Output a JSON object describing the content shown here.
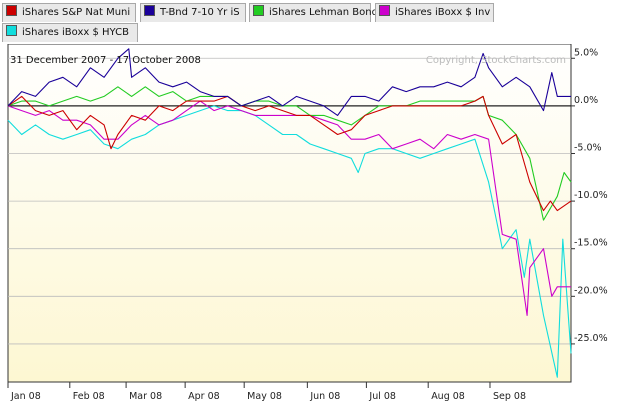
{
  "legend": {
    "items": [
      {
        "label": "iShares S&P Nat Muni",
        "color": "#cc0000"
      },
      {
        "label": "T-Bnd 7-10 Yr iS",
        "color": "#1a0099"
      },
      {
        "label": "iShares Lehman Bond",
        "color": "#22cc22"
      },
      {
        "label": "iShares iBoxx $ Inv",
        "color": "#cc00cc"
      },
      {
        "label": "iShares iBoxx $ HYCB",
        "color": "#11dddd"
      }
    ]
  },
  "chart": {
    "date_range": "31 December 2007 - 17 October 2008",
    "copyright": "Copyright, StockCharts.com",
    "background_top": "#ffffff",
    "background_bottom": "#fdf7d2"
  },
  "chart_data": {
    "type": "line",
    "xlim": [
      0,
      41
    ],
    "ylim": [
      -29,
      6.5
    ],
    "ylabel_side": "right",
    "y_ticks": [
      {
        "value": 5,
        "label": "5.0%"
      },
      {
        "value": 0,
        "label": "0.0%"
      },
      {
        "value": -5,
        "label": "-5.0%"
      },
      {
        "value": -10,
        "label": "-10.0%"
      },
      {
        "value": -15,
        "label": "-15.0%"
      },
      {
        "value": -20,
        "label": "-20.0%"
      },
      {
        "value": -25,
        "label": "-25.0%"
      }
    ],
    "x_ticks": [
      {
        "value": 0,
        "label": "Jan 08"
      },
      {
        "value": 4.5,
        "label": "Feb 08"
      },
      {
        "value": 8.6,
        "label": "Mar 08"
      },
      {
        "value": 12.9,
        "label": "Apr 08"
      },
      {
        "value": 17.2,
        "label": "May 08"
      },
      {
        "value": 21.8,
        "label": "Jun 08"
      },
      {
        "value": 26.1,
        "label": "Jul 08"
      },
      {
        "value": 30.6,
        "label": "Aug 08"
      },
      {
        "value": 35.1,
        "label": "Sep 08"
      }
    ],
    "grid": true,
    "series": [
      {
        "name": "iShares S&P Nat Muni",
        "color": "#cc0000",
        "x": [
          0,
          1,
          2,
          3,
          4,
          5,
          6,
          7,
          7.5,
          8,
          9,
          10,
          11,
          12,
          13,
          14,
          15,
          16,
          17,
          18,
          19,
          20,
          21,
          22,
          23,
          24,
          25,
          26,
          27,
          28,
          29,
          30,
          31,
          32,
          33,
          34,
          34.6,
          35,
          36,
          37,
          38,
          39,
          39.5,
          40,
          41
        ],
        "y": [
          0,
          1,
          -0.5,
          -1,
          -0.5,
          -2.5,
          -1,
          -2,
          -4.5,
          -3,
          -1,
          -1.5,
          0,
          -0.5,
          0.5,
          0.5,
          0.5,
          1,
          0,
          -0.5,
          0,
          -0.5,
          -1,
          -1,
          -2,
          -3,
          -2.5,
          -1,
          -0.5,
          0,
          0,
          0,
          0,
          0,
          0,
          0.5,
          1,
          -1,
          -4,
          -3,
          -8,
          -11,
          -10,
          -11,
          -10
        ]
      },
      {
        "name": "T-Bnd 7-10 Yr iS",
        "color": "#1a0099",
        "x": [
          0,
          1,
          2,
          3,
          4,
          5,
          6,
          7,
          8,
          8.8,
          9,
          10,
          11,
          12,
          13,
          14,
          15,
          16,
          17,
          18,
          19,
          20,
          21,
          22,
          23,
          24,
          25,
          26,
          27,
          28,
          29,
          30,
          31,
          32,
          33,
          34,
          34.6,
          35,
          36,
          37,
          38,
          39,
          39.6,
          40,
          41
        ],
        "y": [
          0,
          1.5,
          1,
          2.5,
          3,
          2,
          4,
          3,
          5,
          6,
          3,
          4,
          2.5,
          2,
          2.5,
          1.5,
          1,
          1,
          0,
          0.5,
          1,
          0,
          1,
          0.5,
          0,
          -1,
          1,
          1,
          0.5,
          2,
          1.5,
          2,
          2,
          2.5,
          2,
          3,
          5.5,
          4,
          2,
          3,
          2,
          -0.5,
          3.5,
          1,
          1
        ]
      },
      {
        "name": "iShares Lehman Bond",
        "color": "#22cc22",
        "x": [
          0,
          1,
          2,
          3,
          4,
          5,
          6,
          7,
          8,
          9,
          10,
          11,
          12,
          13,
          14,
          15,
          16,
          17,
          18,
          19,
          20,
          21,
          22,
          23,
          24,
          25,
          26,
          27,
          28,
          29,
          30,
          31,
          32,
          33,
          34,
          34.6,
          35,
          36,
          37,
          38,
          39,
          40,
          40.5,
          41
        ],
        "y": [
          0,
          0.5,
          0.5,
          0,
          0.5,
          1,
          0.5,
          1,
          2,
          1,
          2,
          1,
          1.5,
          0.5,
          1,
          1,
          1,
          0,
          0.5,
          0.5,
          0,
          0,
          -1,
          -1,
          -1.5,
          -2,
          -1,
          0,
          0,
          0,
          0.5,
          0.5,
          0.5,
          0.5,
          0.5,
          1,
          -1,
          -1.5,
          -3,
          -5.5,
          -12,
          -9.5,
          -7,
          -8
        ]
      },
      {
        "name": "iShares iBoxx $ Inv",
        "color": "#cc00cc",
        "x": [
          0,
          1,
          2,
          3,
          4,
          5,
          6,
          7,
          8,
          9,
          10,
          11,
          12,
          13,
          14,
          15,
          16,
          17,
          18,
          19,
          20,
          21,
          22,
          23,
          24,
          25,
          26,
          27,
          28,
          29,
          30,
          31,
          32,
          33,
          34,
          35,
          36,
          37,
          37.8,
          38,
          39,
          39.6,
          40,
          41
        ],
        "y": [
          0,
          -0.5,
          -1,
          -0.5,
          -1.5,
          -1.5,
          -2,
          -3.5,
          -3.5,
          -2,
          -1,
          -2,
          -1.5,
          -0.5,
          0.5,
          -0.5,
          0,
          -0.5,
          -1,
          -1,
          -1,
          -1,
          -1,
          -1.5,
          -2,
          -3.5,
          -3.5,
          -3,
          -4.5,
          -4,
          -3.5,
          -4.5,
          -3,
          -3.5,
          -3,
          -3.5,
          -13.5,
          -14,
          -22,
          -17,
          -15,
          -20,
          -19,
          -19
        ]
      },
      {
        "name": "iShares iBoxx $ HYCB",
        "color": "#11dddd",
        "x": [
          0,
          1,
          2,
          3,
          4,
          5,
          6,
          7,
          8,
          9,
          10,
          11,
          12,
          13,
          14,
          15,
          16,
          17,
          18,
          19,
          20,
          21,
          22,
          23,
          24,
          25,
          25.5,
          26,
          27,
          28,
          29,
          30,
          31,
          32,
          33,
          34,
          35,
          36,
          37,
          37.6,
          38,
          39,
          40,
          40.4,
          41
        ],
        "y": [
          -1.5,
          -3,
          -2,
          -3,
          -3.5,
          -3,
          -2.5,
          -4,
          -4.5,
          -3.5,
          -3,
          -2,
          -1.5,
          -1,
          -0.5,
          0,
          -0.5,
          -0.5,
          -1,
          -2,
          -3,
          -3,
          -4,
          -4.5,
          -5,
          -5.5,
          -7,
          -5,
          -4.5,
          -4.5,
          -5,
          -5.5,
          -5,
          -4.5,
          -4,
          -3.5,
          -8,
          -15,
          -13,
          -18,
          -14,
          -22,
          -28.5,
          -14,
          -26
        ]
      }
    ]
  }
}
